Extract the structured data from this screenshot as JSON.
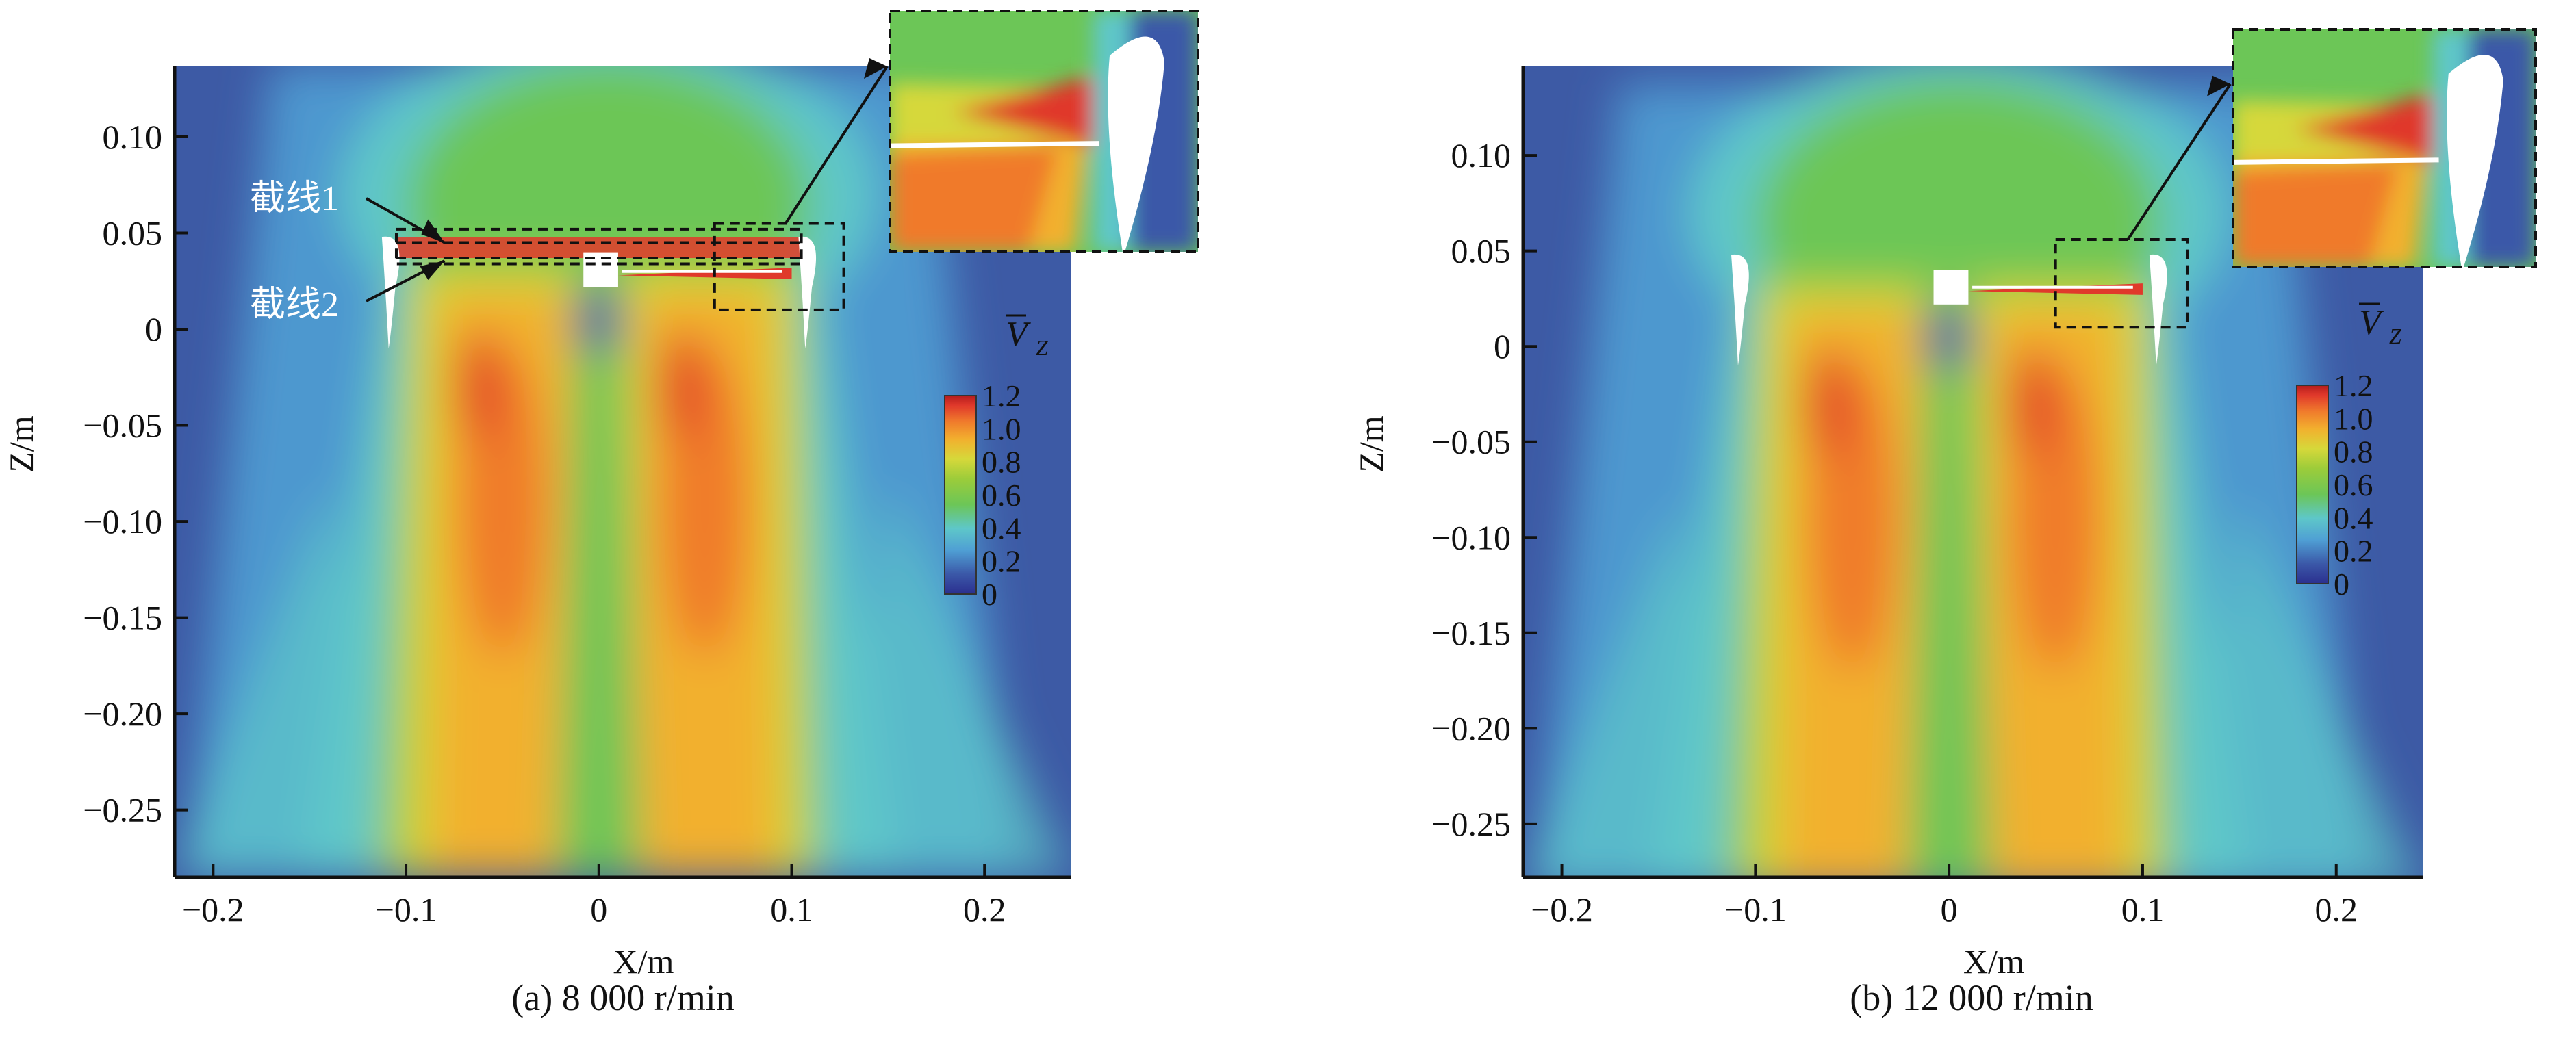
{
  "colors": {
    "scale": [
      "#2b2f8f",
      "#3b58a8",
      "#4f9fd4",
      "#5ec7c9",
      "#6cc657",
      "#9ccc3a",
      "#d6d83a",
      "#f2b02e",
      "#f07a2c",
      "#e0392b",
      "#b51c1c"
    ],
    "background_flow": "#3d5aa5",
    "outline": "#111111",
    "blade": "#ffffff"
  },
  "chart_data": [
    {
      "type": "heatmap",
      "panel_id": "a",
      "caption": "(a) 8 000 r/min",
      "xlabel": "X/m",
      "ylabel": "Z/m",
      "xlim": [
        -0.22,
        0.245
      ],
      "ylim": [
        -0.285,
        0.137
      ],
      "xticks": [
        -0.2,
        -0.1,
        0,
        0.1,
        0.2
      ],
      "xtick_labels": [
        "−0.2",
        "−0.1",
        "0",
        "0.1",
        "0.2"
      ],
      "yticks": [
        0.1,
        0.05,
        0,
        -0.05,
        -0.1,
        -0.15,
        -0.2,
        -0.25
      ],
      "ytick_labels": [
        "0.10",
        "0.05",
        "0",
        "−0.05",
        "−0.10",
        "−0.15",
        "−0.20",
        "−0.25"
      ],
      "colorbar": {
        "label_symbol": "V",
        "label_sub": "Z",
        "range": [
          0,
          1.2
        ],
        "ticks": [
          1.2,
          1.0,
          0.8,
          0.6,
          0.4,
          0.2,
          0
        ],
        "tick_labels": [
          "1.2",
          "1.0",
          "0.8",
          "0.6",
          "0.4",
          "0.2",
          "0"
        ]
      },
      "annotations": [
        "截线1",
        "截线2"
      ],
      "section_lines_z": [
        0.045,
        0.037
      ],
      "section_lines_x": [
        -0.105,
        0.105
      ],
      "zoom_region": {
        "x": [
          0.06,
          0.127
        ],
        "z": [
          0.01,
          0.055
        ]
      },
      "inset": true,
      "grid": false
    },
    {
      "type": "heatmap",
      "panel_id": "b",
      "caption": "(b) 12 000 r/min",
      "xlabel": "X/m",
      "ylabel": "Z/m",
      "xlim": [
        -0.22,
        0.245
      ],
      "ylim": [
        -0.278,
        0.147
      ],
      "xticks": [
        -0.2,
        -0.1,
        0,
        0.1,
        0.2
      ],
      "xtick_labels": [
        "−0.2",
        "−0.1",
        "0",
        "0.1",
        "0.2"
      ],
      "yticks": [
        0.1,
        0.05,
        0,
        -0.05,
        -0.1,
        -0.15,
        -0.2,
        -0.25
      ],
      "ytick_labels": [
        "0.10",
        "0.05",
        "0",
        "−0.05",
        "−0.10",
        "−0.15",
        "−0.20",
        "−0.25"
      ],
      "colorbar": {
        "label_symbol": "V",
        "label_sub": "Z",
        "range": [
          0,
          1.2
        ],
        "ticks": [
          1.2,
          1.0,
          0.8,
          0.6,
          0.4,
          0.2,
          0
        ],
        "tick_labels": [
          "1.2",
          "1.0",
          "0.8",
          "0.6",
          "0.4",
          "0.2",
          "0"
        ]
      },
      "annotations": [],
      "zoom_region": {
        "x": [
          0.055,
          0.123
        ],
        "z": [
          0.01,
          0.056
        ]
      },
      "inset": true,
      "grid": false
    }
  ]
}
